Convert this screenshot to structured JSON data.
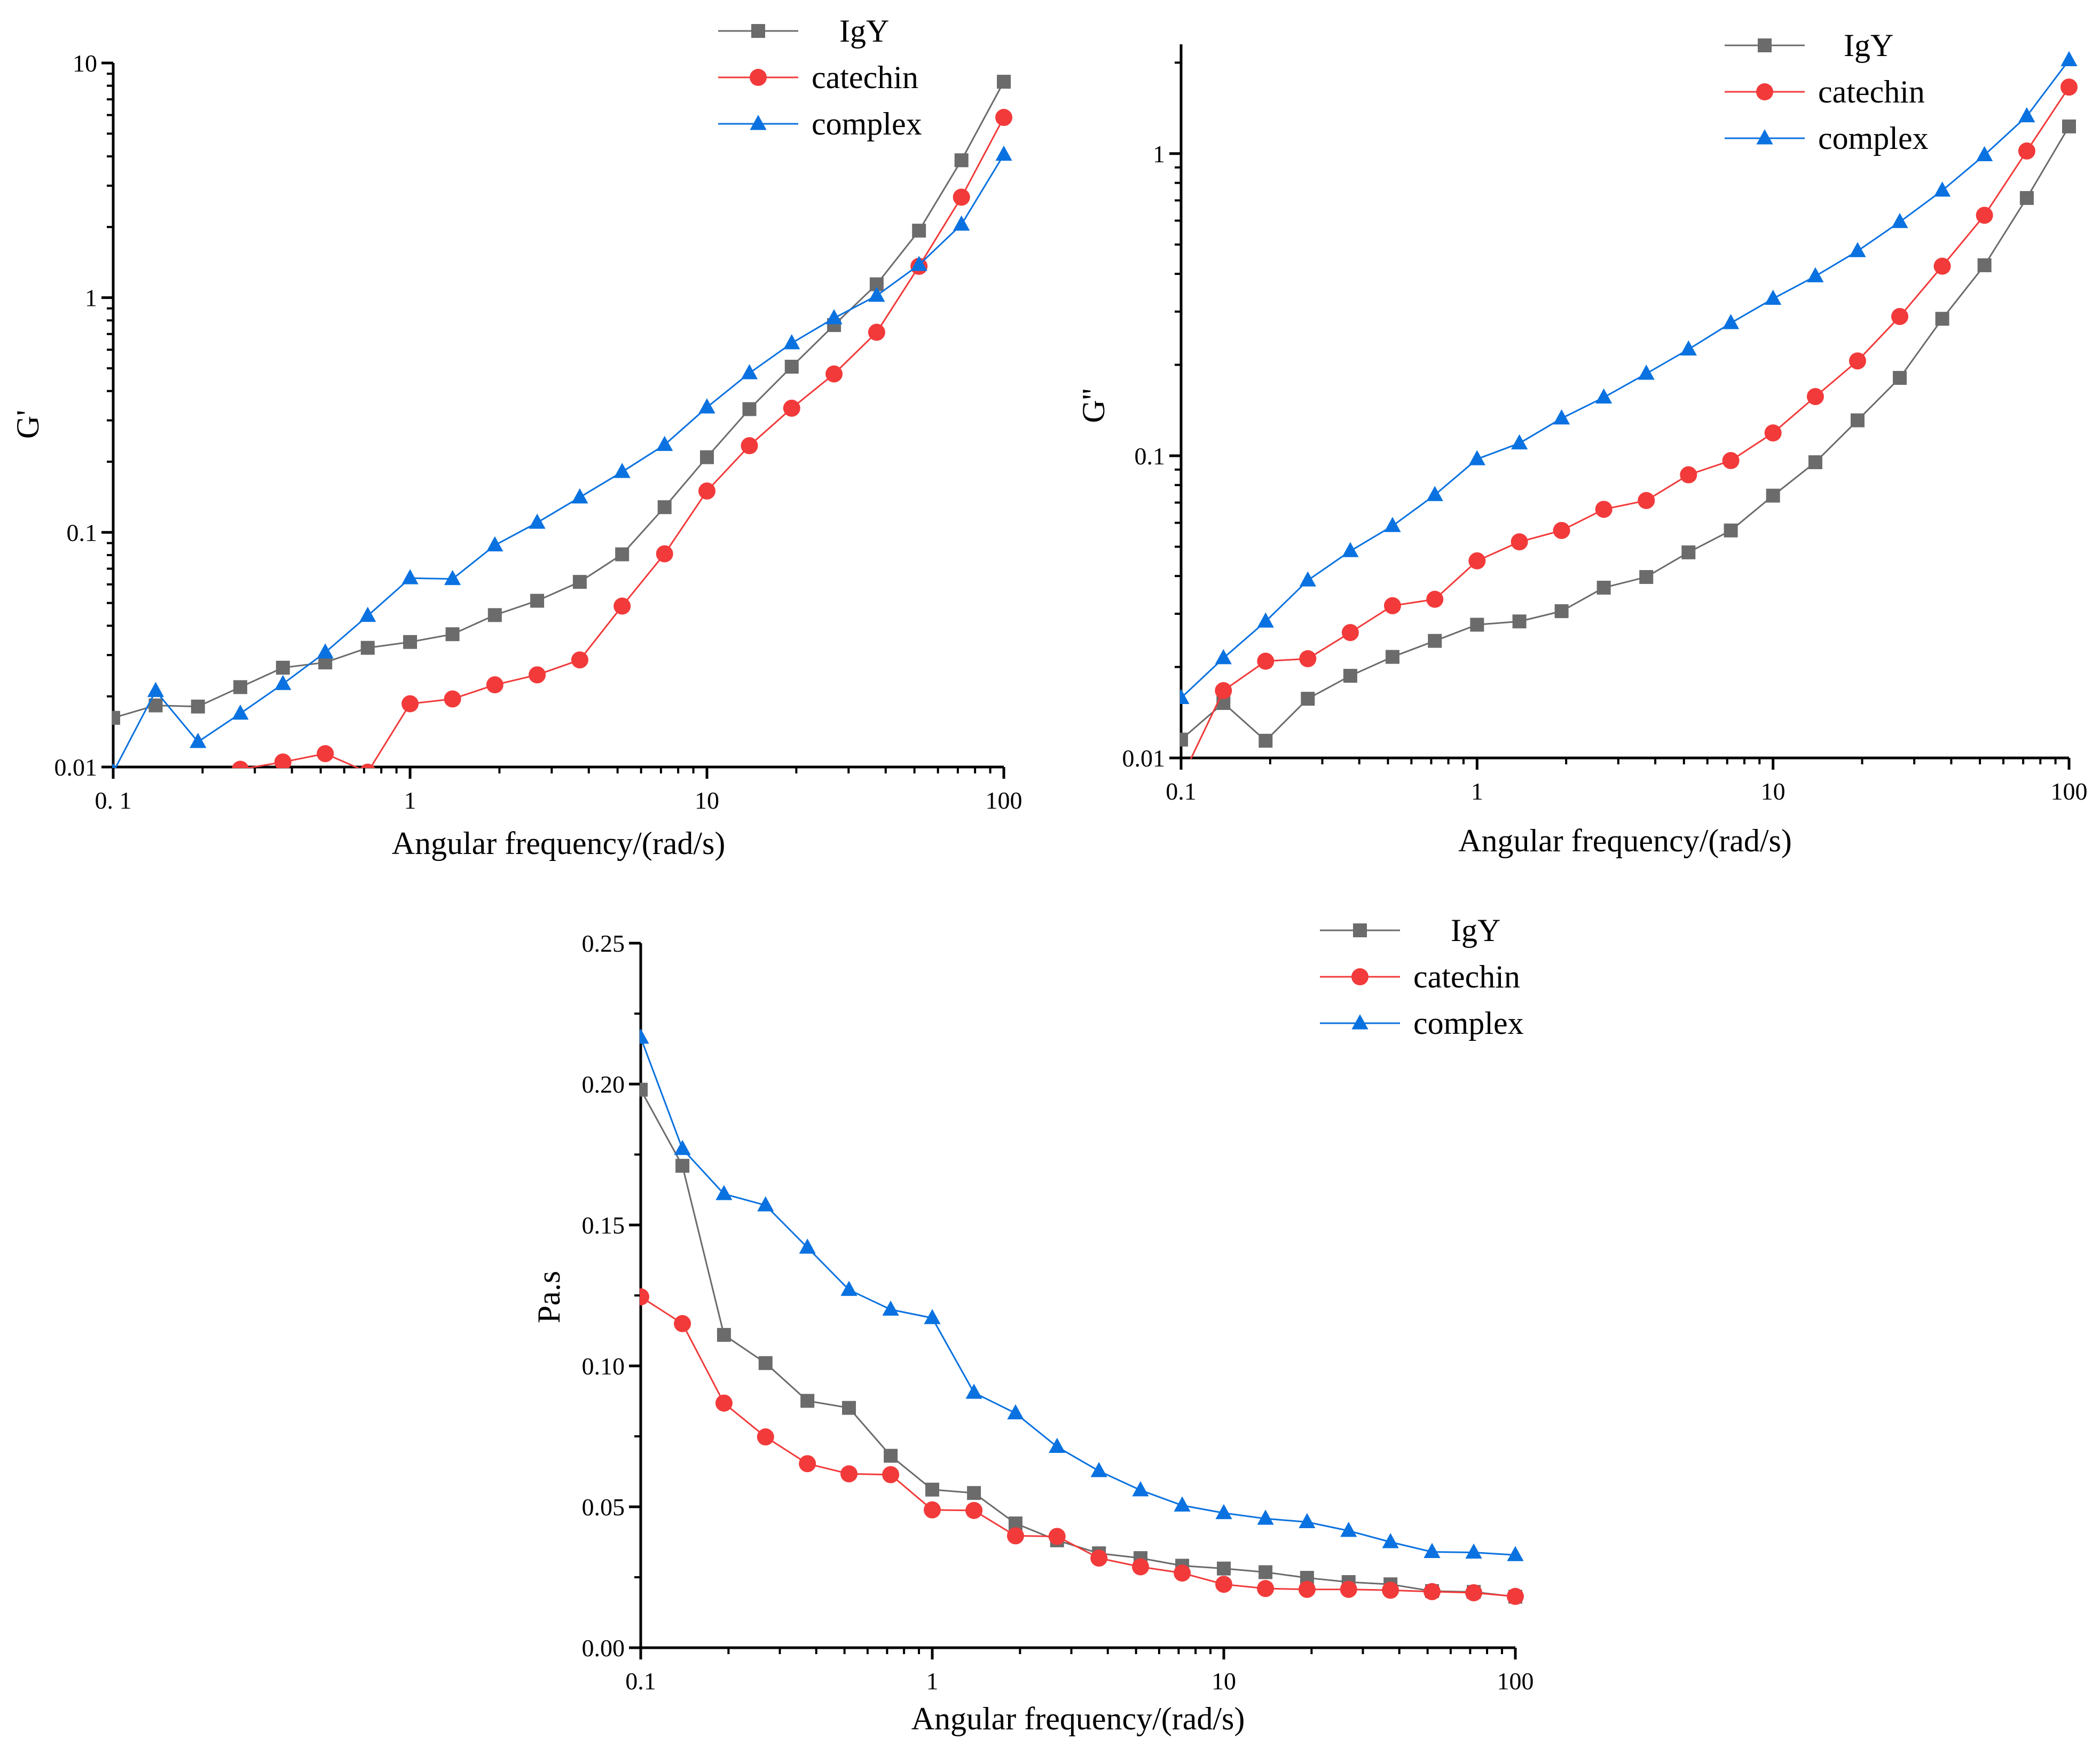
{
  "series_styles": [
    {
      "name": "IgY",
      "color": "#6b6b6b",
      "marker": "square"
    },
    {
      "name": "catechin",
      "color": "#f23a3a",
      "marker": "circle"
    },
    {
      "name": "complex",
      "color": "#0a72e0",
      "marker": "triangle"
    }
  ],
  "chart_data": [
    {
      "id": "storage-modulus",
      "type": "line",
      "xscale": "log",
      "yscale": "log",
      "xlabel": "Angular frequency/(rad/s)",
      "ylabel": "G'",
      "xlim": [
        0.1,
        100
      ],
      "ylim": [
        0.01,
        10
      ],
      "xticks": [
        0.1,
        1,
        10,
        100
      ],
      "xtick_labels": [
        "0. 1",
        "1",
        "10",
        "100"
      ],
      "yticks": [
        0.01,
        0.1,
        1,
        10
      ],
      "ytick_labels": [
        "0.01",
        "0.1",
        "1",
        "10"
      ],
      "x": [
        0.1,
        0.139,
        0.193,
        0.268,
        0.373,
        0.518,
        0.72,
        1,
        1.39,
        1.93,
        2.68,
        3.73,
        5.18,
        7.2,
        10,
        13.9,
        19.3,
        26.8,
        37.3,
        51.8,
        72,
        100
      ],
      "legend": [
        "IgY",
        "catechin",
        "complex"
      ],
      "series": [
        {
          "name": "IgY",
          "values": [
            0.0162,
            0.0183,
            0.0181,
            0.0219,
            0.0265,
            0.0279,
            0.0322,
            0.0341,
            0.0368,
            0.0444,
            0.0511,
            0.0615,
            0.0806,
            0.128,
            0.209,
            0.335,
            0.508,
            0.764,
            1.14,
            1.93,
            3.85,
            8.32
          ]
        },
        {
          "name": "catechin",
          "values": [
            null,
            null,
            null,
            0.00978,
            0.0105,
            0.0114,
            0.0095,
            0.0186,
            0.0195,
            0.0224,
            0.0247,
            0.0286,
            0.0485,
            0.081,
            0.15,
            0.234,
            0.338,
            0.473,
            0.712,
            1.36,
            2.68,
            5.86
          ]
        },
        {
          "name": "complex",
          "values": [
            0.0095,
            0.0211,
            0.0128,
            0.0169,
            0.0226,
            0.0308,
            0.0441,
            0.0638,
            0.0633,
            0.0881,
            0.11,
            0.141,
            0.181,
            0.236,
            0.341,
            0.477,
            0.64,
            0.818,
            1.02,
            1.38,
            2.05,
            4.07
          ]
        }
      ]
    },
    {
      "id": "loss-modulus",
      "type": "line",
      "xscale": "log",
      "yscale": "log",
      "xlabel": "Angular frequency/(rad/s)",
      "ylabel": "G''",
      "xlim": [
        0.1,
        100
      ],
      "ylim": [
        0.01,
        2.3
      ],
      "xticks": [
        0.1,
        1,
        10,
        100
      ],
      "xtick_labels": [
        "0.1",
        "1",
        "10",
        "100"
      ],
      "yticks": [
        0.01,
        0.1,
        1
      ],
      "ytick_labels": [
        "0.01",
        "0.1",
        "1"
      ],
      "x": [
        0.1,
        0.139,
        0.193,
        0.268,
        0.373,
        0.518,
        0.72,
        1,
        1.39,
        1.93,
        2.68,
        3.73,
        5.18,
        7.2,
        10,
        13.9,
        19.3,
        26.8,
        37.3,
        51.8,
        72,
        100
      ],
      "legend": [
        "IgY",
        "catechin",
        "complex"
      ],
      "series": [
        {
          "name": "IgY",
          "values": [
            0.0115,
            0.0152,
            0.0114,
            0.0157,
            0.0187,
            0.0216,
            0.0244,
            0.0276,
            0.0283,
            0.0306,
            0.0366,
            0.0397,
            0.0479,
            0.0566,
            0.0738,
            0.0952,
            0.131,
            0.181,
            0.284,
            0.427,
            0.713,
            1.23
          ]
        },
        {
          "name": "catechin",
          "values": [
            0.0085,
            0.0167,
            0.0209,
            0.0213,
            0.026,
            0.0319,
            0.0335,
            0.0449,
            0.0519,
            0.0566,
            0.0665,
            0.0711,
            0.0865,
            0.0964,
            0.119,
            0.157,
            0.206,
            0.289,
            0.424,
            0.625,
            1.02,
            1.66
          ]
        },
        {
          "name": "complex",
          "values": [
            0.0158,
            0.0214,
            0.0283,
            0.0387,
            0.0484,
            0.0586,
            0.0742,
            0.0975,
            0.11,
            0.133,
            0.156,
            0.187,
            0.225,
            0.275,
            0.331,
            0.393,
            0.476,
            0.594,
            0.755,
            0.989,
            1.33,
            2.04
          ]
        }
      ]
    },
    {
      "id": "complex-viscosity",
      "type": "line",
      "xscale": "log",
      "yscale": "linear",
      "xlabel": "Angular frequency/(rad/s)",
      "ylabel": "Pa.s",
      "xlim": [
        0.1,
        100
      ],
      "ylim": [
        0,
        0.25
      ],
      "xticks": [
        0.1,
        1,
        10,
        100
      ],
      "xtick_labels": [
        "0.1",
        "1",
        "10",
        "100"
      ],
      "yticks": [
        0,
        0.05,
        0.1,
        0.15,
        0.2,
        0.25
      ],
      "ytick_labels": [
        "0.00",
        "0.05",
        "0.10",
        "0.15",
        "0.20",
        "0.25"
      ],
      "x": [
        0.1,
        0.139,
        0.193,
        0.268,
        0.373,
        0.518,
        0.72,
        1,
        1.39,
        1.93,
        2.68,
        3.73,
        5.18,
        7.2,
        10,
        13.9,
        19.3,
        26.8,
        37.3,
        51.8,
        72,
        100
      ],
      "legend": [
        "IgY",
        "catechin",
        "complex"
      ],
      "series": [
        {
          "name": "IgY",
          "values": [
            0.198,
            0.171,
            0.111,
            0.101,
            0.0876,
            0.0851,
            0.0681,
            0.0561,
            0.0549,
            0.0441,
            0.0381,
            0.0335,
            0.0318,
            0.0291,
            0.0281,
            0.0268,
            0.0248,
            0.0233,
            0.0225,
            0.0201,
            0.0198,
            0.0181
          ]
        },
        {
          "name": "catechin",
          "values": [
            0.1245,
            0.115,
            0.0868,
            0.0748,
            0.0653,
            0.0617,
            0.0614,
            0.0489,
            0.0487,
            0.0397,
            0.0395,
            0.0318,
            0.0287,
            0.0265,
            0.0225,
            0.021,
            0.0207,
            0.0207,
            0.0204,
            0.0199,
            0.0195,
            0.0182
          ]
        },
        {
          "name": "complex",
          "values": [
            0.2165,
            0.177,
            0.161,
            0.157,
            0.142,
            0.127,
            0.12,
            0.117,
            0.0905,
            0.0832,
            0.0713,
            0.0627,
            0.0559,
            0.0505,
            0.0478,
            0.0458,
            0.0446,
            0.0415,
            0.0375,
            0.034,
            0.0338,
            0.0329
          ]
        }
      ]
    }
  ]
}
